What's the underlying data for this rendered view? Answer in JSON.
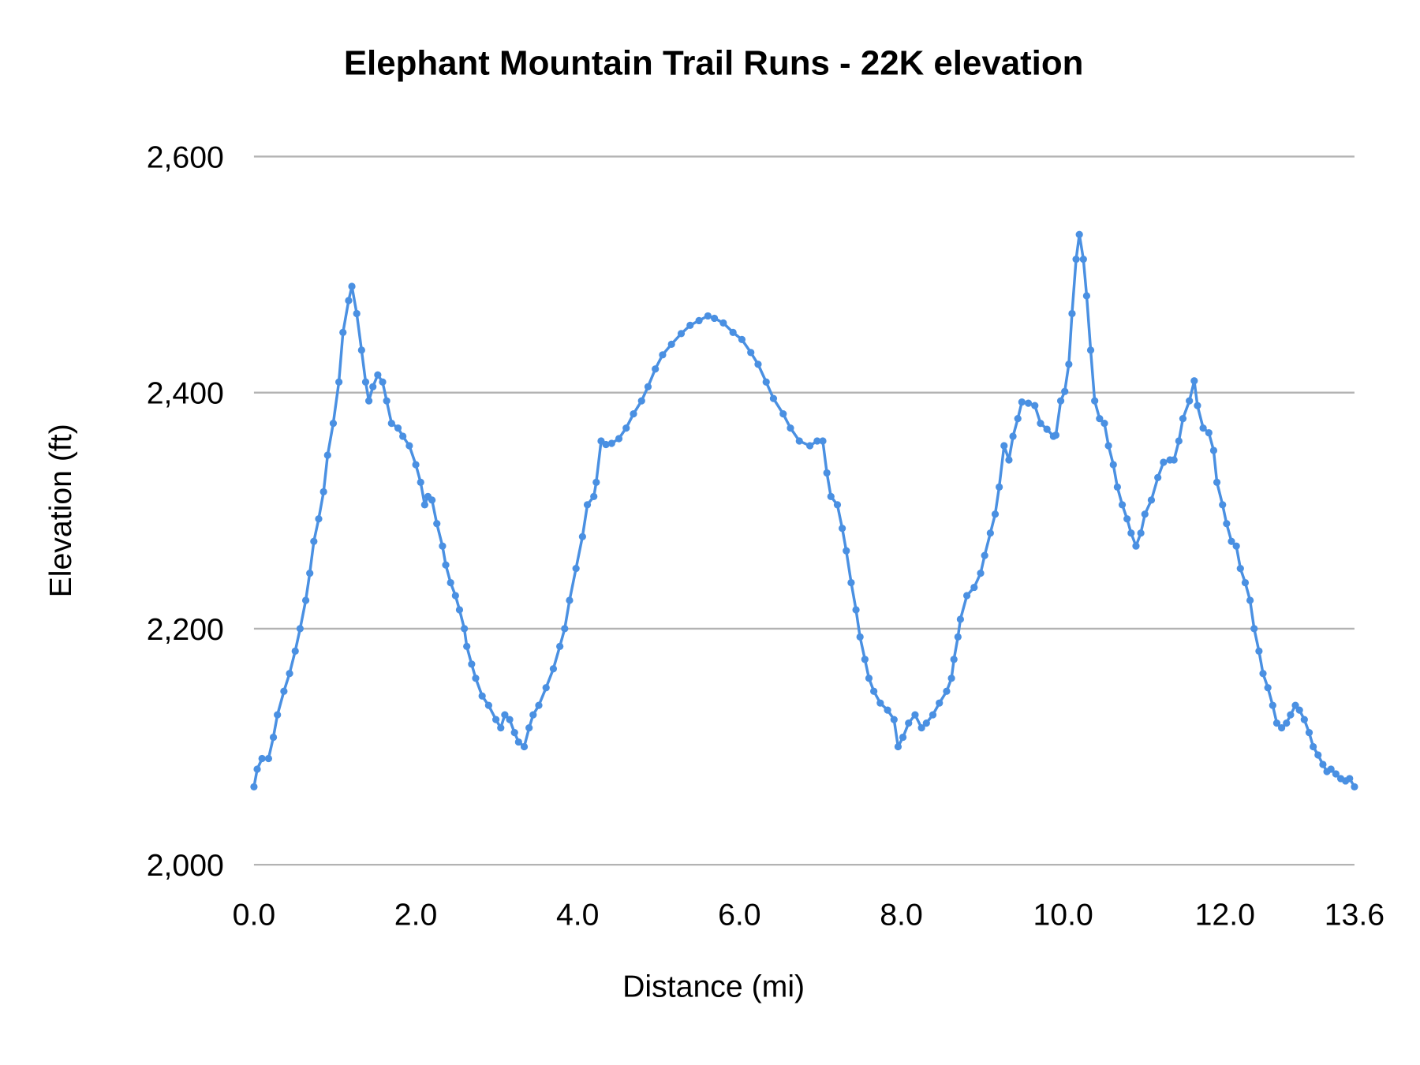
{
  "chart_data": {
    "type": "line",
    "title": "Elephant Mountain Trail Runs - 22K elevation",
    "xlabel": "Distance (mi)",
    "ylabel": "Elevation (ft)",
    "xlim": [
      0,
      13.6
    ],
    "ylim": [
      2000,
      2600
    ],
    "x_ticks": [
      0,
      2,
      4,
      6,
      8,
      10,
      12,
      13.6
    ],
    "x_tick_labels": [
      "0.0",
      "2.0",
      "4.0",
      "6.0",
      "8.0",
      "10.0",
      "12.0",
      "13.6"
    ],
    "y_ticks": [
      2000,
      2200,
      2400,
      2600
    ],
    "y_tick_labels": [
      "2,000",
      "2,200",
      "2,400",
      "2,600"
    ],
    "grid": "horizontal",
    "markers": true,
    "color": "#4a90e2",
    "series": [
      {
        "x": [
          0.0,
          0.04,
          0.1,
          0.18,
          0.24,
          0.29,
          0.37,
          0.44,
          0.51,
          0.57,
          0.64,
          0.69,
          0.74,
          0.8,
          0.86,
          0.91,
          0.98,
          1.05,
          1.1,
          1.17,
          1.21,
          1.27,
          1.33,
          1.38,
          1.42,
          1.47,
          1.53,
          1.59,
          1.64,
          1.7,
          1.78,
          1.84,
          1.92,
          2.0,
          2.06,
          2.11,
          2.15,
          2.2,
          2.26,
          2.33,
          2.37,
          2.43,
          2.49,
          2.54,
          2.6,
          2.63,
          2.69,
          2.74,
          2.82,
          2.9,
          2.99,
          3.05,
          3.1,
          3.16,
          3.22,
          3.27,
          3.34,
          3.4,
          3.45,
          3.52,
          3.61,
          3.7,
          3.78,
          3.84,
          3.9,
          3.98,
          4.06,
          4.12,
          4.2,
          4.23,
          4.29,
          4.35,
          4.42,
          4.51,
          4.6,
          4.69,
          4.79,
          4.87,
          4.96,
          5.05,
          5.16,
          5.28,
          5.39,
          5.5,
          5.61,
          5.69,
          5.8,
          5.92,
          6.03,
          6.14,
          6.23,
          6.33,
          6.42,
          6.54,
          6.63,
          6.74,
          6.87,
          6.96,
          7.03,
          7.08,
          7.13,
          7.21,
          7.27,
          7.32,
          7.38,
          7.44,
          7.49,
          7.55,
          7.6,
          7.66,
          7.74,
          7.83,
          7.91,
          7.96,
          8.02,
          8.09,
          8.17,
          8.25,
          8.31,
          8.39,
          8.47,
          8.56,
          8.62,
          8.65,
          8.7,
          8.73,
          8.81,
          8.9,
          8.98,
          9.03,
          9.1,
          9.16,
          9.21,
          9.27,
          9.33,
          9.38,
          9.44,
          9.49,
          9.57,
          9.65,
          9.72,
          9.8,
          9.88,
          9.91,
          9.97,
          10.02,
          10.07,
          10.11,
          10.16,
          10.2,
          10.25,
          10.29,
          10.34,
          10.39,
          10.45,
          10.51,
          10.56,
          10.62,
          10.67,
          10.73,
          10.79,
          10.84,
          10.9,
          10.96,
          11.01,
          11.09,
          11.17,
          11.24,
          11.32,
          11.37,
          11.43,
          11.48,
          11.56,
          11.62,
          11.66,
          11.73,
          11.8,
          11.86,
          11.9,
          11.97,
          12.02,
          12.08,
          12.14,
          12.19,
          12.25,
          12.31,
          12.36,
          12.42,
          12.47,
          12.53,
          12.59,
          12.64,
          12.7,
          12.76,
          12.81,
          12.87,
          12.92,
          12.98,
          13.04,
          13.09,
          13.15,
          13.21,
          13.26,
          13.31,
          13.37,
          13.43,
          13.49,
          13.54,
          13.6
        ],
        "y": [
          2066,
          2081,
          2090,
          2090,
          2108,
          2127,
          2147,
          2162,
          2181,
          2200,
          2224,
          2247,
          2274,
          2293,
          2316,
          2347,
          2374,
          2409,
          2451,
          2478,
          2490,
          2467,
          2436,
          2409,
          2393,
          2405,
          2415,
          2409,
          2393,
          2374,
          2370,
          2363,
          2355,
          2339,
          2324,
          2305,
          2312,
          2309,
          2289,
          2270,
          2254,
          2239,
          2228,
          2216,
          2200,
          2185,
          2170,
          2158,
          2143,
          2135,
          2123,
          2116,
          2127,
          2123,
          2112,
          2104,
          2100,
          2116,
          2127,
          2135,
          2150,
          2166,
          2185,
          2200,
          2224,
          2251,
          2278,
          2305,
          2312,
          2324,
          2359,
          2356,
          2357,
          2361,
          2370,
          2382,
          2393,
          2405,
          2420,
          2432,
          2441,
          2450,
          2457,
          2461,
          2465,
          2463,
          2459,
          2451,
          2445,
          2434,
          2424,
          2409,
          2395,
          2382,
          2370,
          2359,
          2355,
          2359,
          2359,
          2332,
          2312,
          2305,
          2285,
          2266,
          2239,
          2216,
          2193,
          2174,
          2158,
          2147,
          2137,
          2131,
          2123,
          2100,
          2108,
          2120,
          2127,
          2116,
          2120,
          2127,
          2137,
          2147,
          2158,
          2174,
          2193,
          2208,
          2228,
          2235,
          2247,
          2262,
          2281,
          2297,
          2320,
          2355,
          2343,
          2363,
          2378,
          2392,
          2391,
          2389,
          2374,
          2369,
          2363,
          2364,
          2393,
          2401,
          2424,
          2467,
          2513,
          2534,
          2513,
          2482,
          2436,
          2393,
          2378,
          2374,
          2355,
          2339,
          2320,
          2305,
          2293,
          2281,
          2270,
          2281,
          2297,
          2309,
          2328,
          2341,
          2343,
          2343,
          2359,
          2378,
          2393,
          2410,
          2389,
          2370,
          2366,
          2351,
          2324,
          2305,
          2289,
          2274,
          2270,
          2251,
          2239,
          2224,
          2200,
          2181,
          2162,
          2150,
          2135,
          2120,
          2116,
          2120,
          2127,
          2135,
          2131,
          2123,
          2112,
          2100,
          2093,
          2085,
          2079,
          2081,
          2077,
          2073,
          2071,
          2073,
          2066
        ]
      }
    ]
  }
}
